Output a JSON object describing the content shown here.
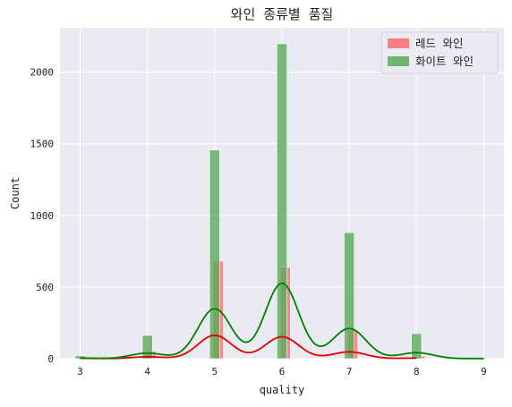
{
  "chart_data": {
    "type": "histogram-kde",
    "title": "와인 종류별 품질",
    "xlabel": "quality",
    "ylabel": "Count",
    "xlim": [
      2.7,
      9.3
    ],
    "ylim": [
      0,
      2310
    ],
    "x_ticks": [
      "3",
      "4",
      "5",
      "6",
      "7",
      "8",
      "9"
    ],
    "y_ticks": [
      "0",
      "500",
      "1000",
      "1500",
      "2000"
    ],
    "grid": true,
    "legend_position": "top-right",
    "series": [
      {
        "name": "레드 와인",
        "bar_color": "#ff6b6b",
        "line_color": "#e00000",
        "x": [
          3,
          4,
          5,
          6,
          7,
          8
        ],
        "values": [
          10,
          53,
          681,
          638,
          199,
          18
        ]
      },
      {
        "name": "화이트 와인",
        "bar_color": "#5aaa5a",
        "line_color": "#008000",
        "x": [
          3,
          4,
          5,
          6,
          7,
          8,
          9
        ],
        "values": [
          20,
          163,
          1457,
          2198,
          880,
          175,
          5
        ]
      }
    ]
  }
}
